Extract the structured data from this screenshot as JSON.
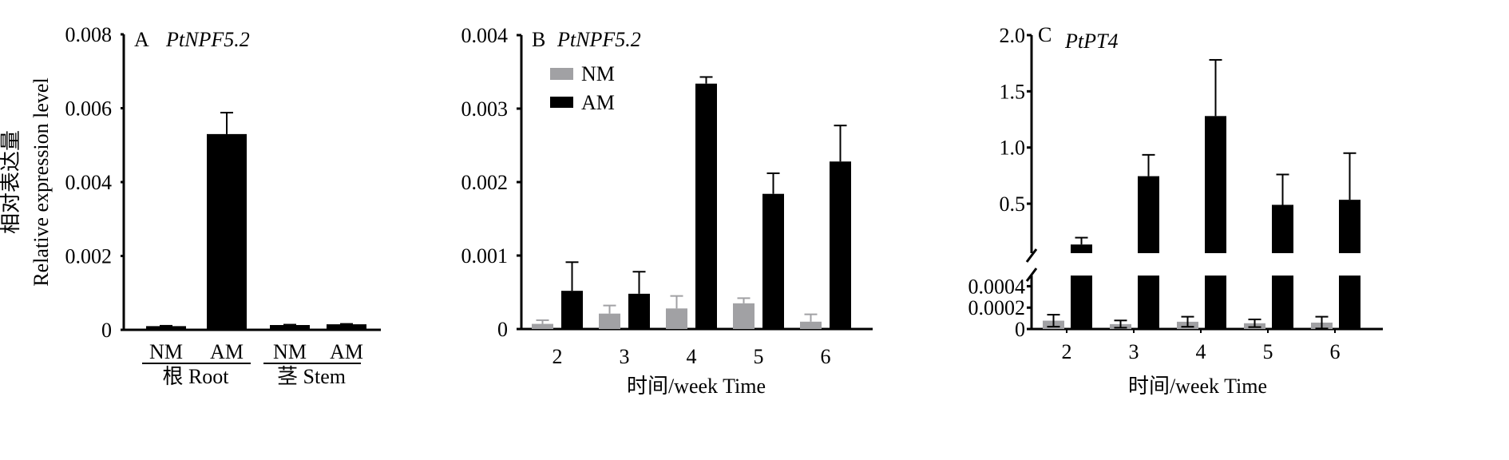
{
  "colors": {
    "NM": "#a1a1a4",
    "AM": "#000000"
  },
  "chart_data": [
    {
      "type": "bar",
      "panel_letter": "A",
      "gene": "PtNPF5.2",
      "ylabel_cn": "相对表达量",
      "ylabel": "Relative expression level",
      "ylim": [
        0,
        0.008
      ],
      "yticks": [
        0,
        0.002,
        0.004,
        0.006,
        0.008
      ],
      "ytick_labels": [
        "0",
        "0.002",
        "0.004",
        "0.006",
        "0.008"
      ],
      "categories": [
        "NM",
        "AM",
        "NM",
        "AM"
      ],
      "groups": [
        "根 Root",
        "茎 Stem"
      ],
      "series_of_category": [
        "NM",
        "AM",
        "NM",
        "AM"
      ],
      "values": [
        0.0001,
        0.0053,
        0.00013,
        0.00015
      ],
      "errors": [
        1e-05,
        0.00058,
        1e-05,
        1e-05
      ]
    },
    {
      "type": "bar",
      "panel_letter": "B",
      "gene": "PtNPF5.2",
      "xlabel": "时间/week Time",
      "ylim": [
        0,
        0.004
      ],
      "yticks": [
        0,
        0.001,
        0.002,
        0.003,
        0.004
      ],
      "ytick_labels": [
        "0",
        "0.001",
        "0.002",
        "0.003",
        "0.004"
      ],
      "categories": [
        "2",
        "3",
        "4",
        "5",
        "6"
      ],
      "legend": [
        "NM",
        "AM"
      ],
      "legend_position": "top-left",
      "series": [
        {
          "name": "NM",
          "values": [
            7e-05,
            0.00021,
            0.00028,
            0.00035,
            0.0001
          ],
          "errors": [
            5e-05,
            0.00011,
            0.00017,
            7e-05,
            0.0001
          ]
        },
        {
          "name": "AM",
          "values": [
            0.00052,
            0.00048,
            0.00334,
            0.00184,
            0.00228
          ],
          "errors": [
            0.00039,
            0.0003,
            9e-05,
            0.00028,
            0.00049
          ]
        }
      ]
    },
    {
      "type": "bar",
      "panel_letter": "C",
      "gene": "PtPT4",
      "xlabel": "时间/week Time",
      "axis_break": true,
      "ylim_lower": [
        0,
        0.0005
      ],
      "ylim_upper": [
        0.06,
        2.0
      ],
      "yticks_lower": [
        0,
        0.0002,
        0.0004
      ],
      "ytick_labels_lower": [
        "0",
        "0.0002",
        "0.0004"
      ],
      "yticks_upper": [
        0.5,
        1.0,
        1.5,
        2.0
      ],
      "ytick_labels_upper": [
        "0.5",
        "1.0",
        "1.5",
        "2.0"
      ],
      "categories": [
        "2",
        "3",
        "4",
        "5",
        "6"
      ],
      "series": [
        {
          "name": "NM",
          "values": [
            7.8e-05,
            4.6e-05,
            6.8e-05,
            5.4e-05,
            6e-05
          ],
          "errors": [
            5.6e-05,
            3.4e-05,
            4.7e-05,
            3.6e-05,
            5.5e-05
          ]
        },
        {
          "name": "AM",
          "values": [
            0.137,
            0.745,
            1.28,
            0.49,
            0.535
          ],
          "errors": [
            0.061,
            0.19,
            0.5,
            0.27,
            0.415
          ]
        }
      ]
    }
  ]
}
